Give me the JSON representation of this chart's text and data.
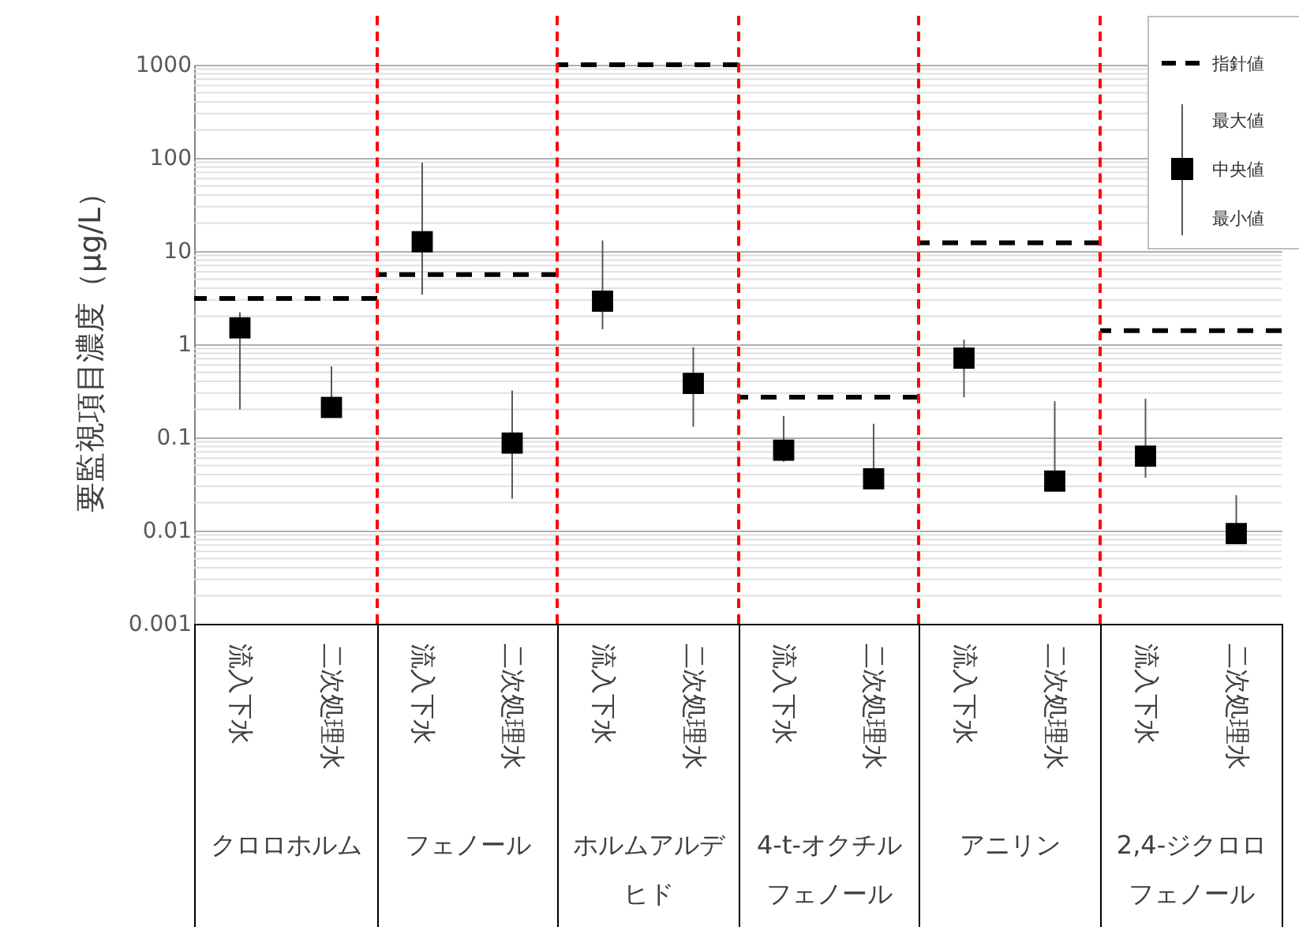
{
  "chart_data": [
    {
      "type": "scatter",
      "xlabel": "クロロホルム",
      "ylabel": "要監視項目濃度（μg/L）",
      "categories": [
        "流入下水",
        "二次処理水"
      ],
      "log": true,
      "ylim": [
        0.001,
        1000
      ],
      "yticks": [
        0.001,
        0.01,
        0.1,
        1,
        10,
        100,
        1000
      ],
      "grid": "y",
      "marker": "square",
      "series": [
        {
          "color": "#000000",
          "values": [
            1.5,
            0.21
          ],
          "errors": [
            [
              0.2,
              2.2
            ],
            [
              0.17,
              0.58
            ]
          ]
        }
      ],
      "ref_lines": [
        {
          "axis": "y",
          "value": 3.1,
          "color": "#000000",
          "line_style": "dashed"
        }
      ]
    },
    {
      "type": "scatter",
      "xlabel": "フェノール",
      "categories": [
        "流入下水",
        "二次処理水"
      ],
      "log": true,
      "ylim": [
        0.001,
        1000
      ],
      "yticks": [
        0.001,
        0.01,
        0.1,
        1,
        10,
        100,
        1000
      ],
      "grid": "y",
      "marker": "square",
      "tick_labels": "x",
      "series": [
        {
          "color": "#000000",
          "values": [
            12.6,
            0.087
          ],
          "errors": [
            [
              3.4,
              89
            ],
            [
              0.022,
              0.32
            ]
          ]
        }
      ],
      "ref_lines": [
        {
          "axis": "y",
          "value": 5.6,
          "color": "#000000",
          "line_style": "dashed"
        }
      ]
    },
    {
      "type": "scatter",
      "xlabel": "ホルムアルデヒド",
      "categories": [
        "流入下水",
        "二次処理水"
      ],
      "log": true,
      "ylim": [
        0.001,
        1000
      ],
      "yticks": [
        0.001,
        0.01,
        0.1,
        1,
        10,
        100,
        1000
      ],
      "grid": "y",
      "marker": "square",
      "tick_labels": "x",
      "series": [
        {
          "color": "#000000",
          "values": [
            2.9,
            0.38
          ],
          "errors": [
            [
              1.45,
              13
            ],
            [
              0.13,
              0.93
            ]
          ]
        }
      ],
      "ref_lines": [
        {
          "axis": "y",
          "value": 1000,
          "color": "#000000",
          "line_style": "dashed"
        }
      ]
    },
    {
      "type": "scatter",
      "xlabel": "4-t-オクチルフェノール",
      "categories": [
        "流入下水",
        "二次処理水"
      ],
      "log": true,
      "ylim": [
        0.001,
        1000
      ],
      "yticks": [
        0.001,
        0.01,
        0.1,
        1,
        10,
        100,
        1000
      ],
      "grid": "y",
      "marker": "square",
      "tick_labels": "x",
      "series": [
        {
          "color": "#000000",
          "values": [
            0.073,
            0.036
          ],
          "errors": [
            [
              0.055,
              0.17
            ],
            [
              0.03,
              0.14
            ]
          ]
        }
      ],
      "ref_lines": [
        {
          "axis": "y",
          "value": 0.27,
          "color": "#000000",
          "line_style": "dashed"
        }
      ]
    },
    {
      "type": "scatter",
      "xlabel": "アニリン",
      "categories": [
        "流入下水",
        "二次処理水"
      ],
      "log": true,
      "ylim": [
        0.001,
        1000
      ],
      "yticks": [
        0.001,
        0.01,
        0.1,
        1,
        10,
        100,
        1000
      ],
      "grid": "y",
      "marker": "square",
      "tick_labels": "x",
      "series": [
        {
          "color": "#000000",
          "values": [
            0.71,
            0.034
          ],
          "errors": [
            [
              0.27,
              1.12
            ],
            [
              0.028,
              0.245
            ]
          ]
        }
      ],
      "ref_lines": [
        {
          "axis": "y",
          "value": 12.3,
          "color": "#000000",
          "line_style": "dashed"
        }
      ]
    },
    {
      "type": "scatter",
      "xlabel": "2,4-ジクロロフェノール",
      "categories": [
        "流入下水",
        "二次処理水"
      ],
      "log": true,
      "ylim": [
        0.001,
        1000
      ],
      "yticks": [
        0.001,
        0.01,
        0.1,
        1,
        10,
        100,
        1000
      ],
      "grid": "y",
      "marker": "square",
      "tick_labels": "x",
      "legend": "top right",
      "annotations": [
        "最大値",
        "最小値"
      ],
      "series": [
        {
          "name": "中央値",
          "color": "#000000",
          "values": [
            0.063,
            0.0093
          ],
          "errors": [
            [
              0.037,
              0.26
            ],
            [
              0.0078,
              0.024
            ]
          ]
        }
      ],
      "ref_lines": [
        {
          "axis": "y",
          "value": 1.4,
          "label": "指針値",
          "color": "#000000",
          "line_style": "dashed"
        }
      ]
    }
  ]
}
